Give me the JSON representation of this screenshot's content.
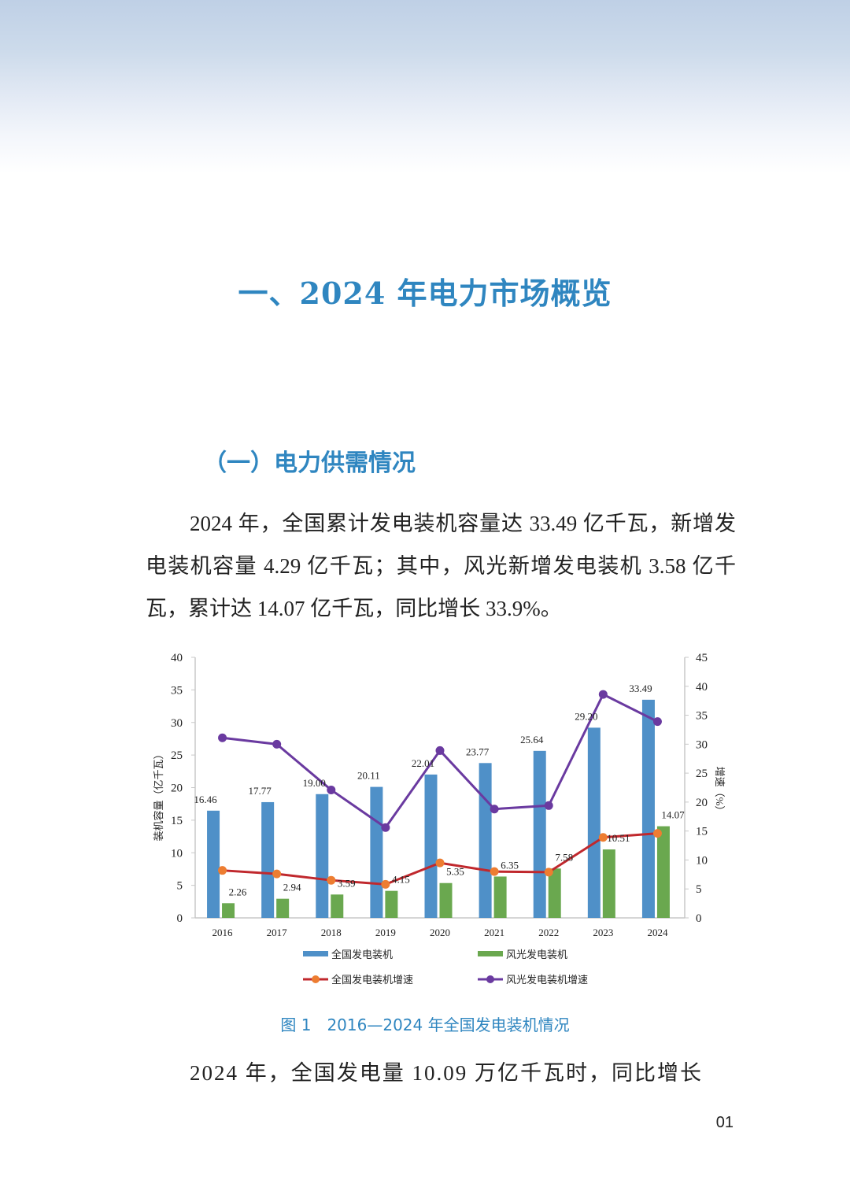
{
  "section_title": "一、2024 年电力市场概览",
  "subsection_title": "（一）电力供需情况",
  "paragraph_1": "2024 年，全国累计发电装机容量达 33.49 亿千瓦，新增发电装机容量 4.29 亿千瓦；其中，风光新增发电装机 3.58 亿千瓦，累计达 14.07 亿千瓦，同比增长 33.9%。",
  "paragraph_2": "2024 年，全国发电量 10.09 万亿千瓦时，同比增长",
  "figure_caption": "图 1　2016—2024 年全国发电装机情况",
  "page_number": "01",
  "colors": {
    "heading": "#2f86c0",
    "bar_national": "#4f90c8",
    "bar_windsolar": "#6aa84f",
    "line_national": "#c0282d",
    "marker_national": "#ed7d31",
    "line_windsolar": "#6a3aa0"
  },
  "chart_data": {
    "type": "bar",
    "title": "2016—2024 年全国发电装机情况",
    "categories": [
      "2016",
      "2017",
      "2018",
      "2019",
      "2020",
      "2021",
      "2022",
      "2023",
      "2024"
    ],
    "series": [
      {
        "name": "全国发电装机",
        "type": "bar",
        "axis": "left",
        "values": [
          16.46,
          17.77,
          19.0,
          20.11,
          22.01,
          23.77,
          25.64,
          29.2,
          33.49
        ]
      },
      {
        "name": "风光发电装机",
        "type": "bar",
        "axis": "left",
        "values": [
          2.26,
          2.94,
          3.59,
          4.15,
          5.35,
          6.35,
          7.58,
          10.51,
          14.07
        ]
      },
      {
        "name": "全国发电装机增速",
        "type": "line",
        "axis": "right",
        "values": [
          8.2,
          7.6,
          6.5,
          5.8,
          9.5,
          8.0,
          7.9,
          13.9,
          14.6
        ]
      },
      {
        "name": "风光发电装机增速",
        "type": "line",
        "axis": "right",
        "values": [
          31.1,
          30.0,
          22.1,
          15.6,
          28.9,
          18.8,
          19.4,
          38.6,
          33.9
        ]
      }
    ],
    "ylabel": "装机容量（亿千瓦）",
    "ylabel_right": "增速（%）",
    "ylim": [
      0,
      40
    ],
    "ylim_right": [
      0,
      45
    ],
    "yticks": [
      0,
      5,
      10,
      15,
      20,
      25,
      30,
      35,
      40
    ],
    "yticks_right": [
      0,
      5,
      10,
      15,
      20,
      25,
      30,
      35,
      40,
      45
    ],
    "grid": false,
    "legend_position": "bottom"
  }
}
